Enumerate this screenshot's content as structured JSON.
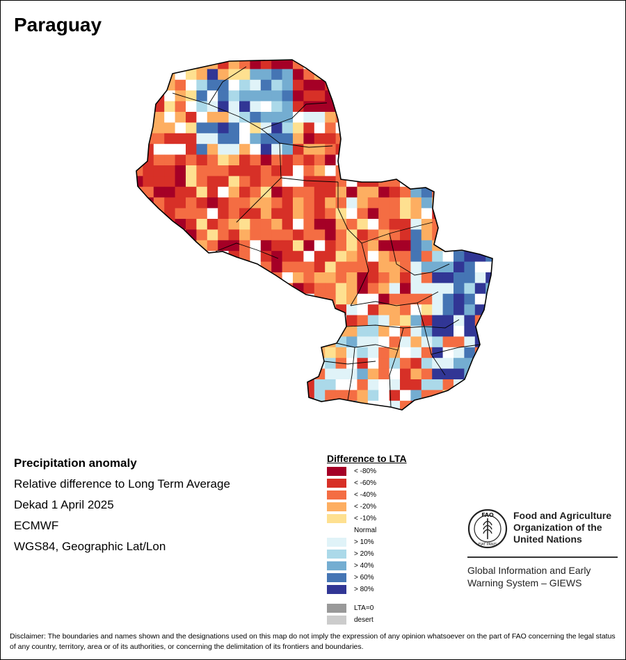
{
  "title": "Paraguay",
  "info": {
    "heading": "Precipitation anomaly",
    "subtitle": "Relative difference to Long Term Average",
    "period": "Dekad 1 April 2025",
    "source": "ECMWF",
    "projection": "WGS84, Geographic Lat/Lon"
  },
  "legend": {
    "title": "Difference to LTA",
    "items": [
      {
        "label": "< -80%",
        "color": "#a50026"
      },
      {
        "label": "< -60%",
        "color": "#d73027"
      },
      {
        "label": "< -40%",
        "color": "#f46d43"
      },
      {
        "label": "< -20%",
        "color": "#fdae61"
      },
      {
        "label": "< -10%",
        "color": "#fee090"
      },
      {
        "label": "Normal",
        "color": "#ffffff"
      },
      {
        "label": "> 10%",
        "color": "#e0f3f8"
      },
      {
        "label": "> 20%",
        "color": "#abd9e9"
      },
      {
        "label": "> 40%",
        "color": "#74add1"
      },
      {
        "label": "> 60%",
        "color": "#4575b4"
      },
      {
        "label": "> 80%",
        "color": "#313695"
      },
      {
        "label": "LTA=0",
        "color": "#999999"
      },
      {
        "label": "desert",
        "color": "#cccccc"
      }
    ]
  },
  "organization": {
    "name_line1": "Food and Agriculture",
    "name_line2": "Organization of the",
    "name_line3": "United Nations",
    "system_line1": "Global Information and Early",
    "system_line2": "Warning System – GIEWS",
    "logo_text": "FAO",
    "logo_motto": "FIAT PANIS",
    "logo_icon": "fao-wheat-logo"
  },
  "disclaimer": "Disclaimer: The boundaries and names shown and the designations used on this map do not imply the expression of any opinion whatsoever on the part of FAO concerning the legal status of any country, territory, area or of its authorities, or concerning the delimitation of its frontiers and boundaries."
}
